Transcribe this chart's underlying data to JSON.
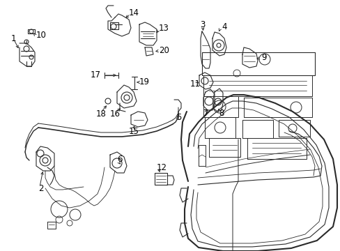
{
  "bg_color": "#ffffff",
  "line_color": "#2a2a2a",
  "fig_width": 4.89,
  "fig_height": 3.6,
  "dpi": 100,
  "label_fs": 8.5
}
